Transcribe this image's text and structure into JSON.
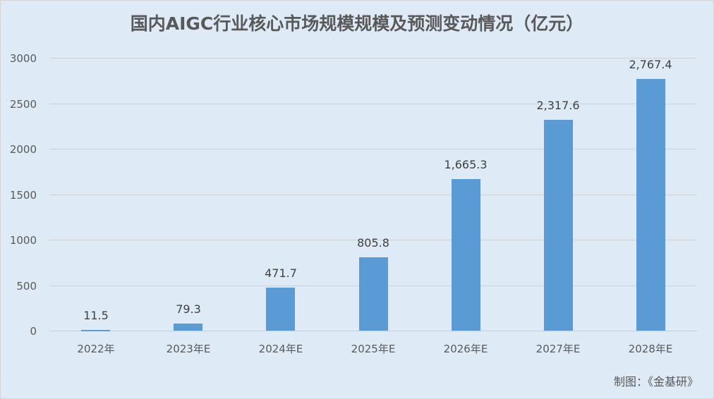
{
  "title": "国内AIGC行业核心市场规模规模及预测变动情况（亿元）",
  "credit": "制图：《金基研》",
  "colors": {
    "background": "#deeaf5",
    "bar": "#5b9bd5",
    "gridline": "#d1d1d1",
    "text": "#595959"
  },
  "y_ticks": [
    "0",
    "500",
    "1000",
    "1500",
    "2000",
    "2500",
    "3000"
  ],
  "bar_labels": [
    "11.5",
    "79.3",
    "471.7",
    "805.8",
    "1,665.3",
    "2,317.6",
    "2,767.4"
  ],
  "chart_data": {
    "type": "bar",
    "title": "国内AIGC行业核心市场规模规模及预测变动情况（亿元）",
    "categories": [
      "2022年",
      "2023年E",
      "2024年E",
      "2025年E",
      "2026年E",
      "2027年E",
      "2028年E"
    ],
    "values": [
      11.5,
      79.3,
      471.7,
      805.8,
      1665.3,
      2317.6,
      2767.4
    ],
    "xlabel": "",
    "ylabel": "",
    "ylim": [
      0,
      3000
    ],
    "yticks": [
      0,
      500,
      1000,
      1500,
      2000,
      2500,
      3000
    ],
    "grid": true,
    "legend": null,
    "data_labels": true,
    "annotation": "制图：《金基研》"
  }
}
